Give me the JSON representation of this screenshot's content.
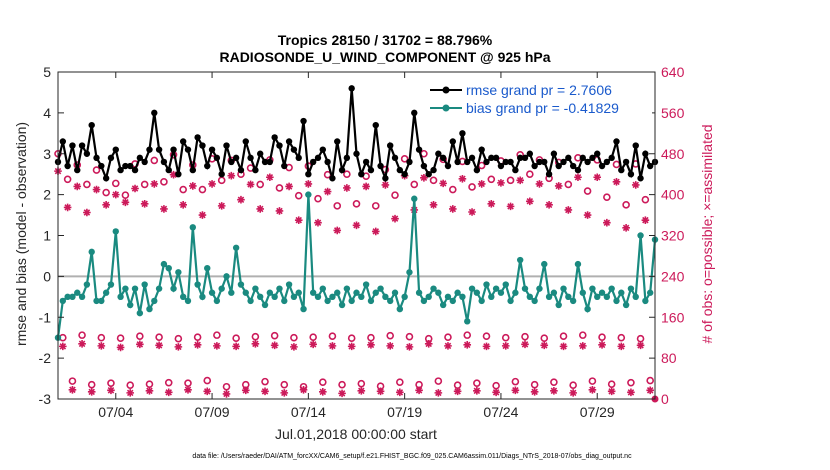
{
  "chart_data": {
    "type": "line",
    "title_line1": "Tropics 28150 / 31702 = 88.796%",
    "title_line2": "RADIOSONDE_U_WIND_COMPONENT @ 925 hPa",
    "ylabel_left": "rmse and bias (model - observation)",
    "ylabel_right": "# of obs: o=possible; ×=assimilated",
    "xlabel": "Jul.01,2018 00:00:00 start",
    "footer": "data file: /Users/raeder/DAI/ATM_forcXX/CAM6_setup/f.e21.FHIST_BGC.f09_025.CAM6assim.011/Diags_NTrS_2018-07/obs_diag_output.nc",
    "xlim": [
      1.0,
      32.0
    ],
    "ylim_left": [
      -3,
      5
    ],
    "ylim_right": [
      0,
      640
    ],
    "x_ticks": [
      4,
      9,
      14,
      19,
      24,
      29
    ],
    "x_tick_labels": [
      "07/04",
      "07/09",
      "07/14",
      "07/19",
      "07/24",
      "07/29"
    ],
    "y_ticks_left": [
      -3,
      -2,
      -1,
      0,
      1,
      2,
      3,
      4,
      5
    ],
    "y_ticks_right": [
      0,
      80,
      160,
      240,
      320,
      400,
      480,
      560,
      640
    ],
    "zero_line": 0,
    "x_start": 1.0,
    "x_step": 0.25,
    "series": [
      {
        "name": "rmse",
        "legend_label": "rmse grand pr = 2.7606",
        "color": "#000000",
        "axis": "left",
        "marker": "dot",
        "values": [
          2.8,
          3.3,
          2.7,
          3.2,
          2.6,
          3.2,
          3.0,
          3.7,
          2.9,
          2.7,
          2.4,
          2.9,
          3.1,
          2.6,
          2.7,
          2.7,
          2.6,
          2.9,
          2.8,
          3.1,
          4.0,
          3.1,
          2.8,
          2.6,
          3.1,
          2.5,
          3.3,
          3.1,
          2.6,
          3.4,
          3.2,
          2.7,
          3.1,
          2.9,
          2.5,
          3.2,
          2.8,
          2.9,
          2.6,
          3.3,
          2.9,
          2.6,
          3.0,
          2.8,
          2.8,
          3.4,
          3.2,
          2.7,
          3.3,
          3.1,
          2.9,
          3.8,
          2.5,
          2.8,
          2.9,
          3.1,
          2.8,
          2.4,
          3.3,
          2.6,
          2.9,
          4.6,
          3.0,
          2.5,
          2.8,
          2.6,
          3.7,
          2.7,
          2.4,
          3.2,
          2.9,
          2.6,
          2.5,
          2.8,
          4.0,
          3.1,
          2.7,
          2.5,
          2.6,
          3.0,
          2.9,
          2.7,
          3.3,
          2.8,
          3.5,
          2.8,
          2.9,
          2.6,
          3.1,
          2.8,
          2.9,
          2.9,
          2.7,
          2.8,
          2.8,
          2.6,
          2.9,
          2.9,
          3.0,
          2.7,
          2.8,
          2.8,
          2.5,
          3.0,
          2.7,
          2.8,
          2.9,
          2.7,
          2.6,
          2.9,
          2.8,
          2.9,
          3.0,
          2.7,
          2.8,
          2.9,
          3.3,
          2.6,
          2.8,
          2.5,
          3.2,
          2.4,
          3.0,
          2.7,
          2.8
        ]
      },
      {
        "name": "bias",
        "legend_label": "bias grand pr = -0.41829",
        "color": "#1a8a80",
        "axis": "left",
        "marker": "dot",
        "values": [
          -1.5,
          -0.6,
          -0.5,
          -0.5,
          -0.4,
          -0.5,
          -0.2,
          0.6,
          -0.6,
          -0.6,
          -0.4,
          -0.2,
          1.1,
          -0.5,
          -0.3,
          -0.7,
          -0.3,
          -0.9,
          -0.2,
          -0.8,
          -0.6,
          -0.3,
          0.3,
          0.2,
          -0.3,
          0.1,
          -0.5,
          -0.6,
          1.2,
          -0.2,
          -0.5,
          0.2,
          -0.4,
          -0.6,
          -0.3,
          0.0,
          -0.4,
          0.7,
          -0.2,
          -0.4,
          -0.6,
          -0.3,
          -0.5,
          -0.7,
          -0.4,
          -0.5,
          -0.3,
          -0.6,
          -0.2,
          -0.5,
          -0.4,
          -0.8,
          2.0,
          -0.4,
          -0.5,
          -0.3,
          -0.6,
          -0.5,
          -0.4,
          -0.7,
          -0.3,
          -0.6,
          -0.4,
          -0.5,
          -0.2,
          -0.6,
          -0.4,
          -0.3,
          -0.5,
          -0.6,
          -0.4,
          -0.8,
          -0.5,
          0.1,
          1.9,
          -0.4,
          -0.6,
          -0.5,
          -0.3,
          -0.4,
          -0.7,
          -0.5,
          -0.6,
          -0.4,
          -0.5,
          -1.1,
          -0.3,
          -0.4,
          -0.6,
          -0.2,
          -0.5,
          -0.3,
          -0.4,
          -0.2,
          -0.6,
          -0.4,
          0.4,
          -0.3,
          -0.5,
          -0.6,
          -0.3,
          0.3,
          -0.5,
          -0.4,
          -0.7,
          -0.3,
          -0.5,
          -0.6,
          0.3,
          -0.4,
          -0.8,
          -0.3,
          -0.5,
          -0.4,
          -0.5,
          -0.3,
          -0.6,
          -0.4,
          -0.7,
          -0.3,
          -0.5,
          1.0,
          -0.6,
          -0.4,
          0.9
        ]
      },
      {
        "name": "obs_possible_00z",
        "legend_label": "",
        "color": "#cc1a5a",
        "axis": "right",
        "marker": "circle",
        "values": [
          480,
          458,
          448,
          422,
          460,
          467,
          478,
          458,
          470,
          467,
          452,
          468,
          453,
          456,
          439,
          440,
          436,
          449,
          470,
          480,
          469,
          465,
          457,
          466,
          478,
          468,
          463,
          472,
          468,
          459,
          460
        ]
      },
      {
        "name": "obs_assimilated_00z",
        "legend_label": "",
        "color": "#cc1a5a",
        "axis": "right",
        "marker": "star",
        "values": [
          446,
          416,
          410,
          400,
          412,
          421,
          439,
          417,
          421,
          437,
          420,
          434,
          416,
          421,
          406,
          413,
          416,
          419,
          437,
          433,
          422,
          431,
          421,
          423,
          428,
          421,
          417,
          434,
          434,
          425,
          419
        ]
      },
      {
        "name": "obs_possible_12z",
        "legend_label": "",
        "color": "#cc1a5a",
        "axis": "right",
        "marker": "circle",
        "values": [
          430,
          420,
          404,
          399,
          420,
          425,
          410,
          410,
          428,
          440,
          420,
          413,
          398,
          392,
          378,
          382,
          378,
          399,
          420,
          428,
          410,
          415,
          430,
          428,
          440,
          432,
          420,
          407,
          395,
          380,
          390
        ]
      },
      {
        "name": "obs_assimilated_12z",
        "legend_label": "",
        "color": "#cc1a5a",
        "axis": "right",
        "marker": "star",
        "values": [
          375,
          365,
          380,
          385,
          382,
          372,
          380,
          360,
          378,
          390,
          372,
          368,
          350,
          345,
          330,
          340,
          328,
          353,
          370,
          380,
          372,
          366,
          382,
          377,
          387,
          380,
          370,
          360,
          345,
          335,
          350
        ]
      },
      {
        "name": "obs_possible_06z",
        "legend_label": "",
        "color": "#cc1a5a",
        "axis": "right",
        "marker": "circle",
        "values": [
          120,
          125,
          120,
          119,
          123,
          121,
          118,
          121,
          125,
          119,
          122,
          124,
          120,
          121,
          123,
          119,
          120,
          124,
          122,
          118,
          121,
          125,
          123,
          120,
          122,
          119,
          123,
          125,
          121,
          120,
          118
        ]
      },
      {
        "name": "obs_assimilated_06z",
        "legend_label": "",
        "color": "#cc1a5a",
        "axis": "right",
        "marker": "star",
        "values": [
          103,
          108,
          104,
          101,
          107,
          105,
          102,
          106,
          104,
          103,
          108,
          105,
          102,
          107,
          104,
          103,
          106,
          104,
          102,
          108,
          104,
          106,
          103,
          104,
          107,
          105,
          103,
          104,
          106,
          103,
          105
        ]
      },
      {
        "name": "obs_possible_18z",
        "legend_label": "",
        "color": "#cc1a5a",
        "axis": "right",
        "marker": "circle",
        "values": [
          35,
          28,
          31,
          27,
          29,
          32,
          31,
          36,
          24,
          28,
          34,
          28,
          24,
          33,
          28,
          30,
          25,
          33,
          28,
          35,
          27,
          31,
          26,
          34,
          28,
          33,
          27,
          35,
          29,
          32,
          36
        ]
      },
      {
        "name": "obs_assimilated_18z",
        "legend_label": "",
        "color": "#cc1a5a",
        "axis": "right",
        "marker": "star",
        "values": [
          18,
          14,
          17,
          12,
          16,
          13,
          18,
          15,
          10,
          17,
          15,
          12,
          18,
          14,
          11,
          16,
          15,
          13,
          17,
          12,
          15,
          16,
          13,
          17,
          14,
          16,
          12,
          18,
          15,
          13,
          17
        ]
      }
    ]
  }
}
